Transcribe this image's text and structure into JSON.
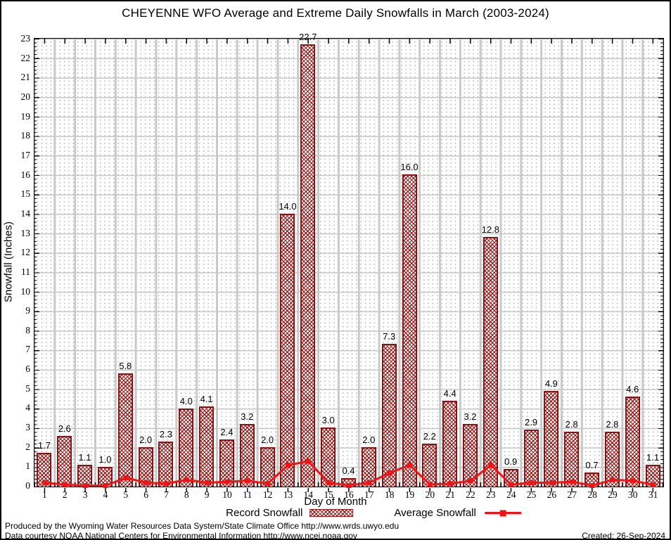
{
  "title": "CHEYENNE WFO Average and Extreme Daily Snowfalls in March (2003-2024)",
  "chart_data": {
    "type": "bar",
    "categories": [
      1,
      2,
      3,
      4,
      5,
      6,
      7,
      8,
      9,
      10,
      11,
      12,
      13,
      14,
      15,
      16,
      17,
      18,
      19,
      20,
      21,
      22,
      23,
      24,
      25,
      26,
      27,
      28,
      29,
      30,
      31
    ],
    "series": [
      {
        "name": "Record Snowfall",
        "type": "bar",
        "value_labels": [
          "1.7",
          "2.6",
          "1.1",
          "1.0",
          "5.8",
          "2.0",
          "2.3",
          "4.0",
          "4.1",
          "2.4",
          "3.2",
          "2.0",
          "14.0",
          "22.7",
          "3.0",
          "0.4",
          "2.0",
          "7.3",
          "16.0",
          "2.2",
          "4.4",
          "3.2",
          "12.8",
          "0.9",
          "2.9",
          "4.9",
          "2.8",
          "0.7",
          "2.8",
          "4.6",
          "1.1"
        ]
      },
      {
        "name": "Average Snowfall",
        "type": "line",
        "values": [
          0.2,
          0.1,
          0.05,
          0.05,
          0.45,
          0.2,
          0.15,
          0.35,
          0.2,
          0.25,
          0.3,
          0.15,
          1.1,
          1.3,
          0.2,
          0.05,
          0.2,
          0.7,
          1.1,
          0.1,
          0.15,
          0.3,
          1.1,
          0.1,
          0.2,
          0.2,
          0.25,
          0.05,
          0.35,
          0.3,
          0.1
        ]
      }
    ],
    "title": "CHEYENNE WFO Average and Extreme Daily Snowfalls in March (2003-2024)",
    "xlabel": "Day of Month",
    "ylabel": "Snowfall (Inches)",
    "ylim": [
      0,
      23
    ],
    "ytick_step": 1,
    "grid": "dotted minor + solid major",
    "legend_position": "bottom",
    "colors": {
      "bar": "#8e1111",
      "average_line": "#f21414",
      "grid_major": "#c6c6c6",
      "axis": "#000000"
    }
  },
  "legend": {
    "record_label": "Record Snowfall",
    "average_label": "Average Snowfall"
  },
  "footer": {
    "line1": "Produced by the Wyoming Water Resources Data System/State Climate Office http://www.wrds.uwyo.edu",
    "line2": "Data courtesy NOAA National Centers for Environmental Information http://www.ncei.noaa.gov",
    "created": "Created: 26-Sep-2024"
  }
}
